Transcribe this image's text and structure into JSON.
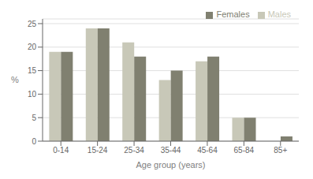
{
  "chart_data": {
    "type": "bar",
    "categories": [
      "0-14",
      "15-24",
      "25-34",
      "35-44",
      "45-64",
      "65-84",
      "85+"
    ],
    "series": [
      {
        "name": "Males",
        "color": "#c8c8b8",
        "values": [
          19,
          24,
          21,
          13,
          17,
          5,
          0
        ]
      },
      {
        "name": "Females",
        "color": "#808070",
        "values": [
          19,
          24,
          18,
          15,
          18,
          5,
          1
        ]
      }
    ],
    "xlabel": "Age group (years)",
    "ylabel": "%",
    "ylim": [
      0,
      26
    ],
    "yticks": [
      0,
      5,
      10,
      15,
      20,
      25
    ],
    "grid": true,
    "legend": "upper right"
  }
}
